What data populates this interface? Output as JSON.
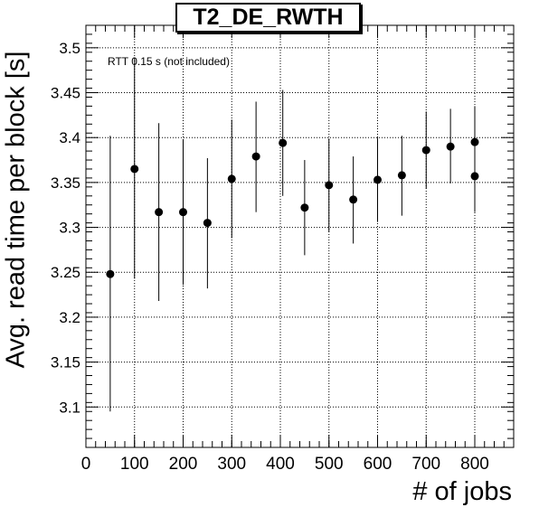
{
  "chart_data": {
    "type": "scatter",
    "title": "T2_DE_RWTH",
    "xlabel": "# of jobs",
    "ylabel": "Avg. read time per block [s]",
    "annotation": "RTT 0.15 s (not included)",
    "xlim": [
      0,
      880
    ],
    "ylim": [
      3.055,
      3.525
    ],
    "x_ticks": [
      0,
      100,
      200,
      300,
      400,
      500,
      600,
      700,
      800
    ],
    "y_ticks": [
      3.1,
      3.15,
      3.2,
      3.25,
      3.3,
      3.35,
      3.4,
      3.45,
      3.5
    ],
    "grid": true,
    "points": [
      {
        "x": 50,
        "y": 3.248,
        "ylo": 3.095,
        "yhi": 3.402
      },
      {
        "x": 100,
        "y": 3.365,
        "ylo": 3.243,
        "yhi": 3.488
      },
      {
        "x": 150,
        "y": 3.317,
        "ylo": 3.218,
        "yhi": 3.416
      },
      {
        "x": 200,
        "y": 3.317,
        "ylo": 3.236,
        "yhi": 3.398
      },
      {
        "x": 250,
        "y": 3.305,
        "ylo": 3.232,
        "yhi": 3.377
      },
      {
        "x": 300,
        "y": 3.354,
        "ylo": 3.288,
        "yhi": 3.42
      },
      {
        "x": 350,
        "y": 3.379,
        "ylo": 3.317,
        "yhi": 3.44
      },
      {
        "x": 405,
        "y": 3.394,
        "ylo": 3.335,
        "yhi": 3.453
      },
      {
        "x": 450,
        "y": 3.322,
        "ylo": 3.269,
        "yhi": 3.375
      },
      {
        "x": 500,
        "y": 3.347,
        "ylo": 3.295,
        "yhi": 3.399
      },
      {
        "x": 550,
        "y": 3.331,
        "ylo": 3.282,
        "yhi": 3.379
      },
      {
        "x": 600,
        "y": 3.353,
        "ylo": 3.306,
        "yhi": 3.4
      },
      {
        "x": 650,
        "y": 3.358,
        "ylo": 3.313,
        "yhi": 3.402
      },
      {
        "x": 700,
        "y": 3.386,
        "ylo": 3.343,
        "yhi": 3.429
      },
      {
        "x": 750,
        "y": 3.39,
        "ylo": 3.349,
        "yhi": 3.432
      },
      {
        "x": 800,
        "y": 3.395,
        "ylo": 3.357,
        "yhi": 3.435
      },
      {
        "x": 800,
        "y": 3.357,
        "ylo": 3.317,
        "yhi": 3.397
      }
    ]
  }
}
